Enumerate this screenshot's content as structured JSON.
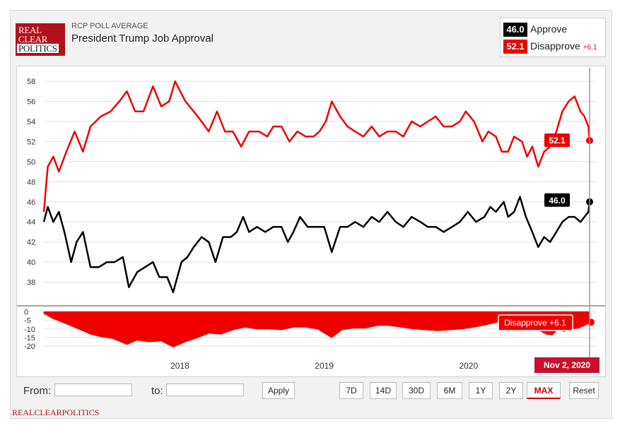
{
  "header": {
    "logo_lines": [
      "REAL",
      "CLEAR",
      "POLITICS"
    ],
    "kicker": "RCP POLL AVERAGE",
    "title": "President Trump Job Approval"
  },
  "legend": {
    "approve": {
      "value": "46.0",
      "label": "Approve",
      "color": "#000000"
    },
    "disapprove": {
      "value": "52.1",
      "label": "Disapprove",
      "change": "+6.1",
      "color": "#ee0000"
    }
  },
  "chart_data": [
    {
      "type": "line",
      "ylim": [
        36,
        58.5
      ],
      "y_ticks": [
        38,
        40,
        42,
        44,
        46,
        48,
        50,
        52,
        54,
        56,
        58
      ],
      "x_ticks": [
        "2018",
        "2019",
        "2020"
      ],
      "grid": true,
      "series": [
        {
          "name": "Disapprove",
          "color": "#ee0000",
          "points": [
            [
              "2017-01-22",
              45.0
            ],
            [
              "2017-02-01",
              49.5
            ],
            [
              "2017-02-15",
              50.5
            ],
            [
              "2017-03-01",
              49.0
            ],
            [
              "2017-03-20",
              51.0
            ],
            [
              "2017-04-10",
              53.0
            ],
            [
              "2017-05-01",
              51.0
            ],
            [
              "2017-05-20",
              53.5
            ],
            [
              "2017-06-15",
              54.5
            ],
            [
              "2017-07-10",
              55.0
            ],
            [
              "2017-08-01",
              56.0
            ],
            [
              "2017-08-20",
              57.0
            ],
            [
              "2017-09-10",
              55.0
            ],
            [
              "2017-10-01",
              55.0
            ],
            [
              "2017-10-25",
              57.5
            ],
            [
              "2017-11-15",
              55.5
            ],
            [
              "2017-12-05",
              56.0
            ],
            [
              "2017-12-20",
              58.0
            ],
            [
              "2018-01-15",
              56.0
            ],
            [
              "2018-02-05",
              55.0
            ],
            [
              "2018-02-25",
              54.0
            ],
            [
              "2018-03-15",
              53.0
            ],
            [
              "2018-04-05",
              55.0
            ],
            [
              "2018-04-25",
              53.0
            ],
            [
              "2018-05-15",
              53.0
            ],
            [
              "2018-06-05",
              51.5
            ],
            [
              "2018-06-25",
              53.0
            ],
            [
              "2018-07-20",
              53.0
            ],
            [
              "2018-08-10",
              52.5
            ],
            [
              "2018-08-25",
              53.5
            ],
            [
              "2018-09-15",
              53.5
            ],
            [
              "2018-10-05",
              52.0
            ],
            [
              "2018-10-25",
              53.0
            ],
            [
              "2018-11-15",
              52.5
            ],
            [
              "2018-12-05",
              52.5
            ],
            [
              "2018-12-20",
              53.0
            ],
            [
              "2019-01-05",
              54.0
            ],
            [
              "2019-01-20",
              56.0
            ],
            [
              "2019-02-10",
              54.5
            ],
            [
              "2019-03-01",
              53.5
            ],
            [
              "2019-03-20",
              53.0
            ],
            [
              "2019-04-10",
              52.5
            ],
            [
              "2019-05-01",
              53.5
            ],
            [
              "2019-05-20",
              52.5
            ],
            [
              "2019-06-10",
              53.0
            ],
            [
              "2019-07-01",
              53.0
            ],
            [
              "2019-07-20",
              52.5
            ],
            [
              "2019-08-10",
              54.0
            ],
            [
              "2019-09-01",
              53.5
            ],
            [
              "2019-09-20",
              54.0
            ],
            [
              "2019-10-10",
              54.5
            ],
            [
              "2019-10-30",
              53.5
            ],
            [
              "2019-11-20",
              53.5
            ],
            [
              "2019-12-10",
              54.0
            ],
            [
              "2019-12-25",
              55.0
            ],
            [
              "2020-01-15",
              54.0
            ],
            [
              "2020-02-05",
              52.0
            ],
            [
              "2020-02-20",
              53.0
            ],
            [
              "2020-03-10",
              52.5
            ],
            [
              "2020-03-25",
              51.0
            ],
            [
              "2020-04-10",
              51.0
            ],
            [
              "2020-04-25",
              52.5
            ],
            [
              "2020-05-15",
              52.0
            ],
            [
              "2020-05-28",
              50.5
            ],
            [
              "2020-06-10",
              51.5
            ],
            [
              "2020-06-25",
              49.5
            ],
            [
              "2020-07-10",
              51.0
            ],
            [
              "2020-07-25",
              51.5
            ],
            [
              "2020-08-10",
              53.0
            ],
            [
              "2020-08-25",
              55.0
            ],
            [
              "2020-09-10",
              56.0
            ],
            [
              "2020-09-25",
              56.5
            ],
            [
              "2020-10-10",
              55.0
            ],
            [
              "2020-10-20",
              54.5
            ],
            [
              "2020-10-30",
              53.5
            ],
            [
              "2020-11-02",
              52.1
            ]
          ]
        },
        {
          "name": "Approve",
          "color": "#000000",
          "points": [
            [
              "2017-01-22",
              44.0
            ],
            [
              "2017-02-01",
              45.5
            ],
            [
              "2017-02-15",
              44.0
            ],
            [
              "2017-03-01",
              45.0
            ],
            [
              "2017-03-15",
              43.0
            ],
            [
              "2017-04-01",
              40.0
            ],
            [
              "2017-04-15",
              42.0
            ],
            [
              "2017-05-01",
              43.0
            ],
            [
              "2017-05-20",
              39.5
            ],
            [
              "2017-06-10",
              39.5
            ],
            [
              "2017-07-01",
              40.0
            ],
            [
              "2017-07-20",
              40.0
            ],
            [
              "2017-08-10",
              40.5
            ],
            [
              "2017-08-25",
              37.5
            ],
            [
              "2017-09-15",
              39.0
            ],
            [
              "2017-10-05",
              39.5
            ],
            [
              "2017-10-25",
              40.0
            ],
            [
              "2017-11-10",
              38.5
            ],
            [
              "2017-11-30",
              38.5
            ],
            [
              "2017-12-15",
              37.0
            ],
            [
              "2018-01-05",
              40.0
            ],
            [
              "2018-01-20",
              40.5
            ],
            [
              "2018-02-05",
              41.5
            ],
            [
              "2018-02-25",
              42.5
            ],
            [
              "2018-03-15",
              42.0
            ],
            [
              "2018-04-01",
              40.0
            ],
            [
              "2018-04-20",
              42.5
            ],
            [
              "2018-05-10",
              42.5
            ],
            [
              "2018-05-25",
              43.0
            ],
            [
              "2018-06-10",
              44.5
            ],
            [
              "2018-06-25",
              43.0
            ],
            [
              "2018-07-15",
              43.5
            ],
            [
              "2018-08-05",
              43.0
            ],
            [
              "2018-08-25",
              43.5
            ],
            [
              "2018-09-15",
              43.5
            ],
            [
              "2018-10-01",
              42.0
            ],
            [
              "2018-10-15",
              43.0
            ],
            [
              "2018-11-01",
              44.5
            ],
            [
              "2018-11-20",
              43.5
            ],
            [
              "2018-12-10",
              43.5
            ],
            [
              "2019-01-01",
              43.5
            ],
            [
              "2019-01-20",
              41.0
            ],
            [
              "2019-02-10",
              43.5
            ],
            [
              "2019-03-01",
              43.5
            ],
            [
              "2019-03-20",
              44.0
            ],
            [
              "2019-04-10",
              43.5
            ],
            [
              "2019-05-01",
              44.5
            ],
            [
              "2019-05-20",
              44.0
            ],
            [
              "2019-06-10",
              45.0
            ],
            [
              "2019-07-01",
              44.0
            ],
            [
              "2019-07-20",
              43.5
            ],
            [
              "2019-08-10",
              44.5
            ],
            [
              "2019-09-01",
              44.0
            ],
            [
              "2019-09-20",
              43.5
            ],
            [
              "2019-10-10",
              43.5
            ],
            [
              "2019-10-30",
              43.0
            ],
            [
              "2019-11-20",
              43.5
            ],
            [
              "2019-12-10",
              44.0
            ],
            [
              "2019-12-30",
              45.0
            ],
            [
              "2020-01-20",
              44.0
            ],
            [
              "2020-02-10",
              44.5
            ],
            [
              "2020-02-25",
              45.5
            ],
            [
              "2020-03-10",
              45.0
            ],
            [
              "2020-03-30",
              46.0
            ],
            [
              "2020-04-10",
              44.5
            ],
            [
              "2020-04-25",
              45.0
            ],
            [
              "2020-05-10",
              46.5
            ],
            [
              "2020-05-25",
              44.5
            ],
            [
              "2020-06-10",
              43.0
            ],
            [
              "2020-06-25",
              41.5
            ],
            [
              "2020-07-10",
              42.5
            ],
            [
              "2020-07-25",
              42.0
            ],
            [
              "2020-08-10",
              43.0
            ],
            [
              "2020-08-25",
              44.0
            ],
            [
              "2020-09-10",
              44.5
            ],
            [
              "2020-09-25",
              44.5
            ],
            [
              "2020-10-10",
              44.0
            ],
            [
              "2020-10-20",
              44.5
            ],
            [
              "2020-10-30",
              45.0
            ],
            [
              "2020-11-02",
              46.0
            ]
          ]
        }
      ],
      "end_labels": {
        "disapprove": "52.1",
        "approve": "46.0"
      }
    },
    {
      "type": "area",
      "ylim": [
        -22,
        1
      ],
      "y_ticks": [
        0,
        -5,
        -10,
        -15,
        -20
      ],
      "series": [
        {
          "name": "Disapprove",
          "color": "#ee0000",
          "points": [
            [
              "2017-01-22",
              -1.0
            ],
            [
              "2017-02-15",
              -4.0
            ],
            [
              "2017-03-20",
              -7.0
            ],
            [
              "2017-04-20",
              -10.0
            ],
            [
              "2017-05-20",
              -13.0
            ],
            [
              "2017-06-15",
              -14.5
            ],
            [
              "2017-07-15",
              -15.5
            ],
            [
              "2017-08-20",
              -19.0
            ],
            [
              "2017-09-15",
              -16.5
            ],
            [
              "2017-10-15",
              -17.5
            ],
            [
              "2017-11-15",
              -17.0
            ],
            [
              "2017-12-15",
              -20.5
            ],
            [
              "2018-01-15",
              -17.5
            ],
            [
              "2018-02-15",
              -15.0
            ],
            [
              "2018-03-15",
              -12.5
            ],
            [
              "2018-04-15",
              -13.0
            ],
            [
              "2018-05-15",
              -10.5
            ],
            [
              "2018-06-15",
              -9.0
            ],
            [
              "2018-07-15",
              -10.0
            ],
            [
              "2018-08-15",
              -10.0
            ],
            [
              "2018-09-15",
              -10.5
            ],
            [
              "2018-10-15",
              -9.0
            ],
            [
              "2018-11-15",
              -9.0
            ],
            [
              "2018-12-15",
              -10.0
            ],
            [
              "2019-01-20",
              -15.0
            ],
            [
              "2019-02-15",
              -10.5
            ],
            [
              "2019-03-15",
              -9.5
            ],
            [
              "2019-04-15",
              -9.5
            ],
            [
              "2019-05-15",
              -8.0
            ],
            [
              "2019-06-15",
              -8.0
            ],
            [
              "2019-07-15",
              -9.0
            ],
            [
              "2019-08-15",
              -10.0
            ],
            [
              "2019-09-15",
              -10.5
            ],
            [
              "2019-10-15",
              -11.0
            ],
            [
              "2019-11-15",
              -10.5
            ],
            [
              "2019-12-15",
              -10.0
            ],
            [
              "2020-01-15",
              -9.0
            ],
            [
              "2020-02-15",
              -7.5
            ],
            [
              "2020-03-15",
              -6.0
            ],
            [
              "2020-04-15",
              -6.5
            ],
            [
              "2020-05-15",
              -6.0
            ],
            [
              "2020-06-10",
              -8.5
            ],
            [
              "2020-06-25",
              -10.5
            ],
            [
              "2020-07-15",
              -13.0
            ],
            [
              "2020-07-30",
              -13.5
            ],
            [
              "2020-08-15",
              -10.0
            ],
            [
              "2020-08-30",
              -11.5
            ],
            [
              "2020-09-15",
              -10.0
            ],
            [
              "2020-10-05",
              -9.5
            ],
            [
              "2020-10-20",
              -8.0
            ],
            [
              "2020-11-02",
              -6.1
            ]
          ]
        }
      ],
      "end_label": "Disapprove +6.1",
      "date_flag": "Nov 2, 2020"
    }
  ],
  "controls": {
    "from_label": "From:",
    "to_label": "to:",
    "apply": "Apply",
    "ranges": [
      "7D",
      "14D",
      "30D",
      "6M",
      "1Y",
      "2Y",
      "MAX",
      "Reset"
    ],
    "active_range": "MAX"
  },
  "credit": "REALCLEARPOLITICS"
}
